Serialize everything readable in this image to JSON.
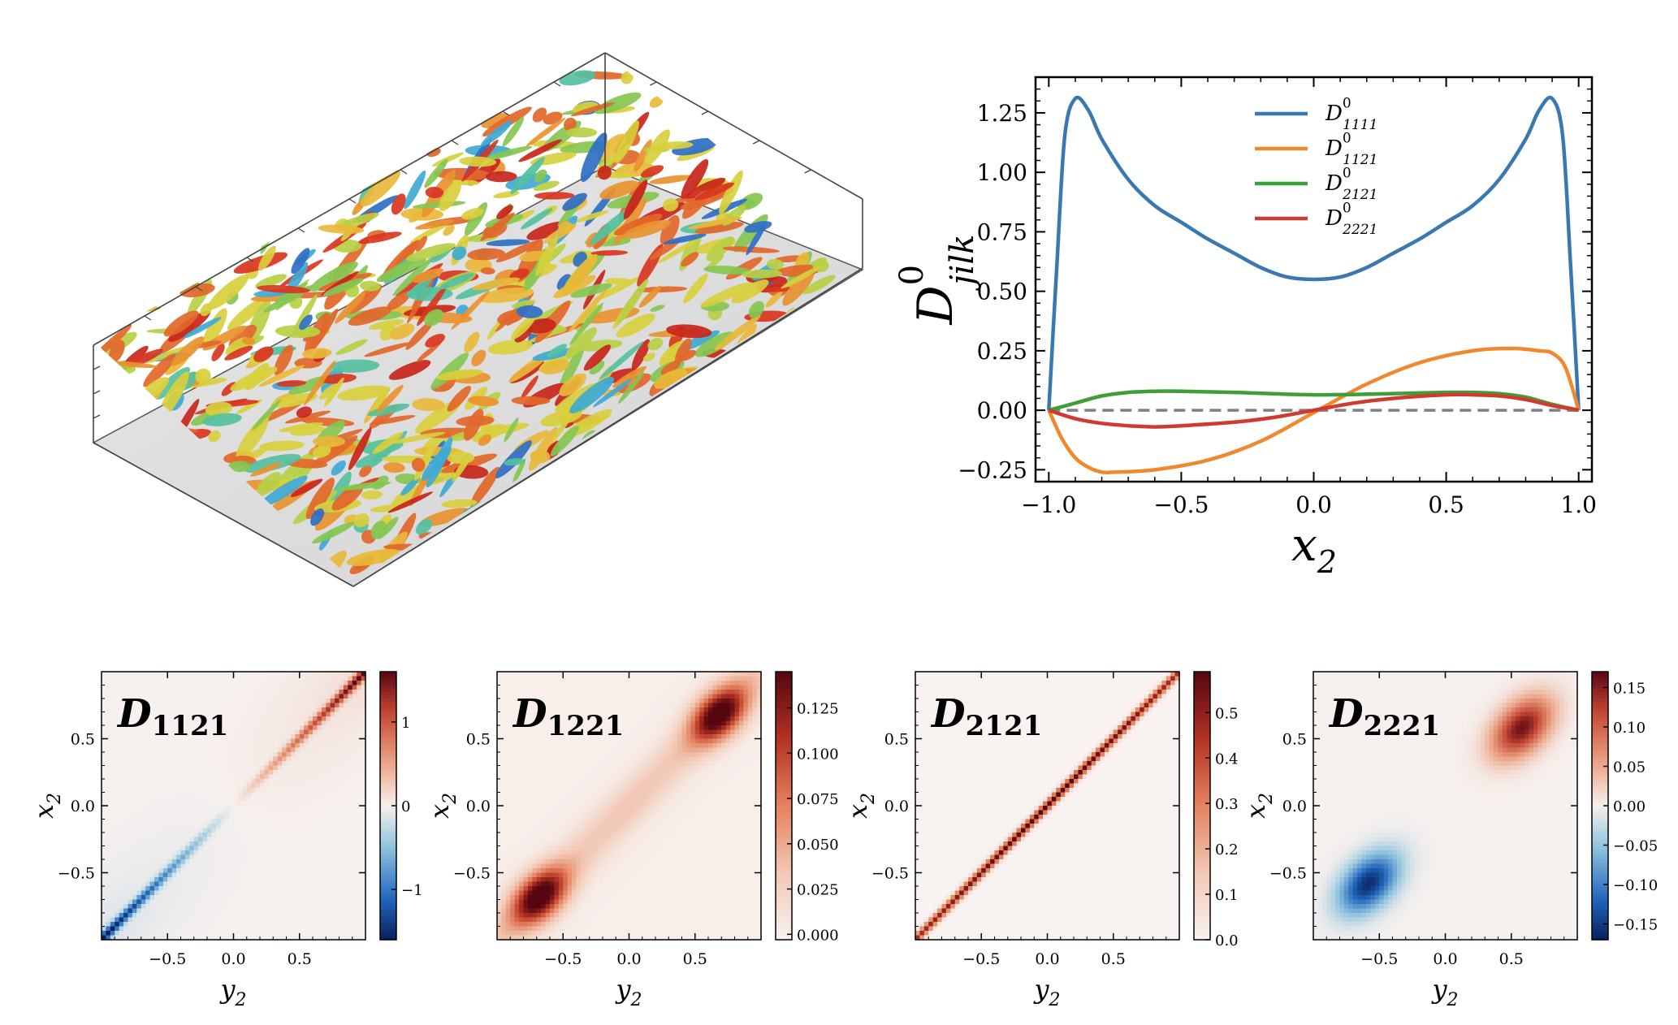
{
  "chart_data": [
    {
      "type": "line",
      "xlabel": "x2",
      "ylabel": "D0 jilk",
      "xlim": [
        -1.05,
        1.05
      ],
      "ylim": [
        -0.3,
        1.4
      ],
      "xticks": [
        -1.0,
        -0.5,
        0.0,
        0.5,
        1.0
      ],
      "xtick_labels": [
        "−1.0",
        "−0.5",
        "0.0",
        "0.5",
        "1.0"
      ],
      "yticks": [
        -0.25,
        0.0,
        0.25,
        0.5,
        0.75,
        1.0,
        1.25
      ],
      "ytick_labels": [
        "−0.25",
        "0.00",
        "0.25",
        "0.50",
        "0.75",
        "1.00",
        "1.25"
      ],
      "legend_position": "top-center",
      "reference_line": {
        "y": 0.0,
        "style": "dashed",
        "color": "#808080"
      },
      "series": [
        {
          "name": "D1111",
          "color": "#3a78b2",
          "x": [
            -1.0,
            -0.97,
            -0.94,
            -0.9,
            -0.85,
            -0.8,
            -0.7,
            -0.6,
            -0.5,
            -0.4,
            -0.3,
            -0.2,
            -0.1,
            0.0,
            0.1,
            0.2,
            0.3,
            0.4,
            0.5,
            0.6,
            0.7,
            0.8,
            0.85,
            0.9,
            0.94,
            0.97,
            1.0
          ],
          "values": [
            0.0,
            0.6,
            1.15,
            1.31,
            1.26,
            1.14,
            0.97,
            0.86,
            0.79,
            0.72,
            0.66,
            0.6,
            0.56,
            0.55,
            0.56,
            0.6,
            0.66,
            0.72,
            0.79,
            0.86,
            0.97,
            1.14,
            1.26,
            1.31,
            1.15,
            0.6,
            0.0
          ]
        },
        {
          "name": "D1121",
          "color": "#f0892e",
          "x": [
            -1.0,
            -0.95,
            -0.9,
            -0.85,
            -0.8,
            -0.75,
            -0.6,
            -0.4,
            -0.2,
            0.0,
            0.2,
            0.4,
            0.6,
            0.75,
            0.85,
            0.9,
            0.95,
            1.0
          ],
          "values": [
            0.0,
            -0.12,
            -0.2,
            -0.24,
            -0.26,
            -0.26,
            -0.25,
            -0.21,
            -0.13,
            -0.01,
            0.11,
            0.2,
            0.25,
            0.26,
            0.25,
            0.24,
            0.18,
            0.0
          ],
          "series_type": "line"
        },
        {
          "name": "D2121",
          "color": "#3f9e3a",
          "x": [
            -1.0,
            -0.9,
            -0.8,
            -0.7,
            -0.6,
            -0.5,
            -0.3,
            0.0,
            0.3,
            0.5,
            0.6,
            0.7,
            0.8,
            0.9,
            1.0
          ],
          "values": [
            0.0,
            0.03,
            0.06,
            0.075,
            0.08,
            0.08,
            0.075,
            0.065,
            0.07,
            0.075,
            0.075,
            0.07,
            0.055,
            0.025,
            0.0
          ]
        },
        {
          "name": "D2221",
          "color": "#d03a30",
          "x": [
            -1.0,
            -0.9,
            -0.8,
            -0.7,
            -0.6,
            -0.5,
            -0.3,
            -0.15,
            0.0,
            0.15,
            0.3,
            0.5,
            0.6,
            0.7,
            0.8,
            0.9,
            1.0
          ],
          "values": [
            0.0,
            -0.035,
            -0.055,
            -0.065,
            -0.07,
            -0.065,
            -0.05,
            -0.03,
            0.0,
            0.03,
            0.05,
            0.065,
            0.065,
            0.06,
            0.045,
            0.02,
            0.0
          ]
        }
      ]
    },
    {
      "type": "heatmap",
      "title": "D1121",
      "xlabel": "y2",
      "ylabel": "x2",
      "xlim": [
        -1.0,
        1.0
      ],
      "ylim": [
        -1.0,
        1.0
      ],
      "xtick_labels": [
        "−0.5",
        "0.0",
        "0.5"
      ],
      "ytick_labels": [
        "0.5",
        "0.0",
        "−0.5"
      ],
      "colormap": "RdBu_r",
      "clim": [
        -1.6,
        1.6
      ],
      "colorbar_ticks": [
        -1,
        0,
        1
      ],
      "colorbar_labels": [
        "−1",
        "0",
        "1"
      ]
    },
    {
      "type": "heatmap",
      "title": "D1221",
      "xlabel": "y2",
      "ylabel": "x2",
      "xlim": [
        -1.0,
        1.0
      ],
      "ylim": [
        -1.0,
        1.0
      ],
      "xtick_labels": [
        "−0.5",
        "0.0",
        "0.5"
      ],
      "ytick_labels": [
        "0.5",
        "0.0",
        "−0.5"
      ],
      "colormap": "Reds",
      "clim": [
        -0.003,
        0.145
      ],
      "colorbar_ticks": [
        0.0,
        0.025,
        0.05,
        0.075,
        0.1,
        0.125
      ],
      "colorbar_labels": [
        "0.000",
        "0.025",
        "0.050",
        "0.075",
        "0.100",
        "0.125"
      ]
    },
    {
      "type": "heatmap",
      "title": "D2121",
      "xlabel": "y2",
      "ylabel": "x2",
      "xlim": [
        -1.0,
        1.0
      ],
      "ylim": [
        -1.0,
        1.0
      ],
      "xtick_labels": [
        "−0.5",
        "0.0",
        "0.5"
      ],
      "ytick_labels": [
        "0.5",
        "0.0",
        "−0.5"
      ],
      "colormap": "Reds",
      "clim": [
        0.0,
        0.59
      ],
      "colorbar_ticks": [
        0.0,
        0.1,
        0.2,
        0.3,
        0.4,
        0.5
      ],
      "colorbar_labels": [
        "0.0",
        "0.1",
        "0.2",
        "0.3",
        "0.4",
        "0.5"
      ]
    },
    {
      "type": "heatmap",
      "title": "D2221",
      "xlabel": "y2",
      "ylabel": "x2",
      "xlim": [
        -1.0,
        1.0
      ],
      "ylim": [
        -1.0,
        1.0
      ],
      "xtick_labels": [
        "−0.5",
        "0.0",
        "0.5"
      ],
      "ytick_labels": [
        "0.5",
        "0.0",
        "−0.5"
      ],
      "colormap": "RdBu_r",
      "clim": [
        -0.17,
        0.17
      ],
      "colorbar_ticks": [
        -0.15,
        -0.1,
        -0.05,
        0.0,
        0.05,
        0.1,
        0.15
      ],
      "colorbar_labels": [
        "−0.15",
        "−0.10",
        "−0.05",
        "0.00",
        "0.05",
        "0.10",
        "0.15"
      ]
    }
  ]
}
